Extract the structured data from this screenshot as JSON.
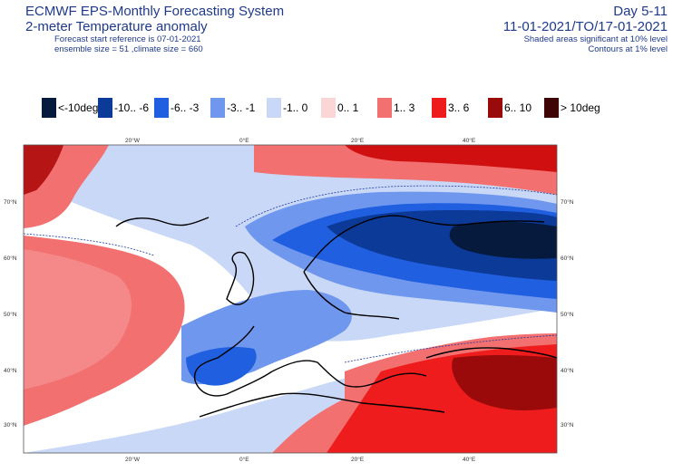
{
  "header": {
    "title": "ECMWF EPS-Monthly Forecasting System",
    "subtitle": "2-meter Temperature anomaly",
    "forecast_start": "Forecast start reference is 07-01-2021",
    "ensemble": "ensemble size = 51  ,climate size = 660",
    "day_range": "Day 5-11",
    "date_range": "11-01-2021/TO/17-01-2021",
    "note_shaded": "Shaded areas significant at 10% level",
    "note_contours": "Contours at 1% level"
  },
  "legend": {
    "items": [
      {
        "label": "<-10deg",
        "color": "#061a3d"
      },
      {
        "label": "-10.. -6",
        "color": "#0b3a99"
      },
      {
        "label": "-6.. -3",
        "color": "#1f5fe0"
      },
      {
        "label": "-3.. -1",
        "color": "#6f97ee"
      },
      {
        "label": "-1..  0",
        "color": "#c8d8f6"
      },
      {
        "label": "0..  1",
        "color": "#fbd6d6"
      },
      {
        "label": "1..  3",
        "color": "#f27070"
      },
      {
        "label": "3..  6",
        "color": "#ee1c1c"
      },
      {
        "label": "6.. 10",
        "color": "#9b0a0a"
      },
      {
        "label": "> 10deg",
        "color": "#3d0505"
      }
    ]
  },
  "map": {
    "lon_labels": [
      "20°W",
      "0°E",
      "20°E",
      "40°E"
    ],
    "lat_labels": [
      "70°N",
      "60°N",
      "50°N",
      "40°N",
      "30°N"
    ]
  }
}
